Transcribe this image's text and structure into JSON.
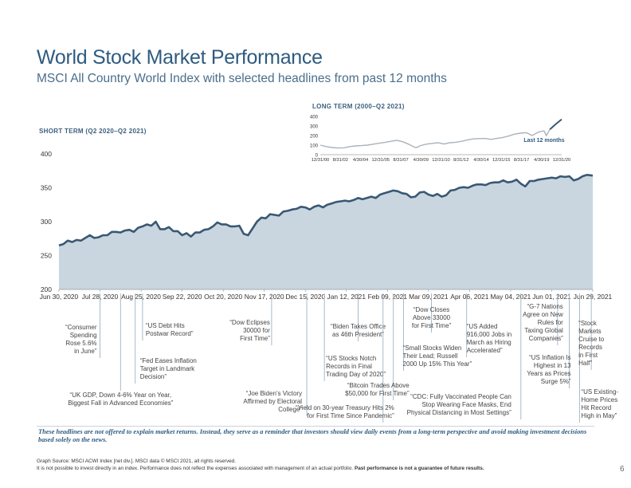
{
  "title": "World Stock Market Performance",
  "subtitle": "MSCI All Country World Index with selected headlines from past 12 months",
  "short_term_label": "SHORT TERM (Q2 2020–Q2 2021)",
  "long_term_label": "LONG TERM (2000–Q2 2021)",
  "long_term_note": "Last 12\nmonths",
  "disclaimer": "These headlines are not offered to explain market returns. Instead, they serve as a reminder that investors should view daily events from a long-term perspective and avoid making investment decisions based solely on the news.",
  "source_line1": "Graph Source: MSCI ACWI Index [net div.]. MSCI data © MSCI 2021, all rights reserved.",
  "source_line2a": "It is not possible to invest directly in an index. Performance does not reflect the expenses associated with management of an actual portfolio. ",
  "source_line2b": "Past performance is not a guarantee of future results.",
  "page_number": "6",
  "colors": {
    "line": "#3a5874",
    "fill": "#c9d6e0",
    "accent": "#2e5b80",
    "annotation_line": "#9fb3c4"
  },
  "chart_data": [
    {
      "type": "area",
      "name": "short_term",
      "title": "SHORT TERM (Q2 2020–Q2 2021)",
      "ylim": [
        200,
        400
      ],
      "yticks": [
        200,
        250,
        300,
        350,
        400
      ],
      "xlim": [
        0,
        364
      ],
      "x_ticks": [
        {
          "x": 0,
          "label": "Jun 30, 2020"
        },
        {
          "x": 28,
          "label": "Jul 28, 2020"
        },
        {
          "x": 56,
          "label": "Aug 25, 2020"
        },
        {
          "x": 84,
          "label": "Sep 22, 2020"
        },
        {
          "x": 112,
          "label": "Oct 20, 2020"
        },
        {
          "x": 140,
          "label": "Nov 17, 2020"
        },
        {
          "x": 168,
          "label": "Dec 15, 2020"
        },
        {
          "x": 196,
          "label": "Jan 12, 2021"
        },
        {
          "x": 224,
          "label": "Feb 09, 2021"
        },
        {
          "x": 252,
          "label": "Mar 09, 2021"
        },
        {
          "x": 280,
          "label": "Apr 06, 2021"
        },
        {
          "x": 308,
          "label": "May 04, 2021"
        },
        {
          "x": 336,
          "label": "Jun 01, 2021"
        },
        {
          "x": 364,
          "label": "Jun 29, 2021"
        }
      ],
      "x": [
        0,
        3,
        6,
        9,
        12,
        15,
        18,
        21,
        24,
        27,
        30,
        33,
        36,
        39,
        42,
        45,
        48,
        51,
        54,
        57,
        60,
        63,
        66,
        69,
        72,
        75,
        78,
        81,
        84,
        87,
        90,
        93,
        96,
        99,
        102,
        105,
        108,
        111,
        114,
        117,
        120,
        123,
        126,
        129,
        132,
        135,
        138,
        141,
        144,
        147,
        150,
        153,
        156,
        159,
        162,
        165,
        168,
        171,
        174,
        177,
        180,
        183,
        186,
        189,
        192,
        195,
        198,
        201,
        204,
        207,
        210,
        213,
        216,
        219,
        222,
        225,
        228,
        231,
        234,
        237,
        240,
        243,
        246,
        249,
        252,
        255,
        258,
        261,
        264,
        267,
        270,
        273,
        276,
        279,
        282,
        285,
        288,
        291,
        294,
        297,
        300,
        303,
        306,
        309,
        312,
        315,
        318,
        321,
        324,
        327,
        330,
        333,
        336,
        339,
        342,
        345,
        348,
        351,
        354,
        357,
        360,
        364
      ],
      "values": [
        265,
        267,
        272,
        270,
        273,
        272,
        276,
        280,
        276,
        277,
        280,
        280,
        285,
        285,
        284,
        287,
        288,
        285,
        291,
        293,
        296,
        294,
        300,
        289,
        289,
        292,
        286,
        286,
        280,
        283,
        278,
        284,
        284,
        288,
        289,
        293,
        299,
        296,
        296,
        293,
        293,
        294,
        282,
        280,
        290,
        300,
        306,
        305,
        311,
        310,
        309,
        315,
        316,
        318,
        319,
        322,
        321,
        318,
        322,
        324,
        321,
        325,
        327,
        329,
        330,
        331,
        330,
        332,
        335,
        333,
        335,
        337,
        335,
        340,
        342,
        344,
        346,
        345,
        342,
        341,
        336,
        337,
        343,
        344,
        340,
        338,
        341,
        337,
        339,
        346,
        347,
        350,
        351,
        350,
        353,
        355,
        355,
        354,
        357,
        358,
        358,
        361,
        358,
        359,
        362,
        356,
        352,
        360,
        360,
        362,
        363,
        364,
        365,
        364,
        367,
        366,
        367,
        361,
        363,
        367,
        369,
        368
      ]
    },
    {
      "type": "area",
      "name": "long_term",
      "title": "LONG TERM (2000–Q2 2021)",
      "ylim": [
        0,
        400
      ],
      "yticks": [
        0,
        100,
        200,
        300,
        400
      ],
      "xlim": [
        2001.0,
        2021.5
      ],
      "x_tick_labels": [
        "12/31/00",
        "8/31/02",
        "4/30/04",
        "12/31/05",
        "8/31/07",
        "4/30/09",
        "12/31/10",
        "8/31/12",
        "4/30/14",
        "12/31/15",
        "8/31/17",
        "4/30/19",
        "12/31/20"
      ],
      "x": [
        2001.0,
        2001.5,
        2002.0,
        2002.5,
        2003.0,
        2003.5,
        2004.0,
        2004.5,
        2005.0,
        2005.5,
        2006.0,
        2006.5,
        2007.0,
        2007.5,
        2008.0,
        2008.5,
        2009.0,
        2009.2,
        2009.5,
        2010.0,
        2010.5,
        2011.0,
        2011.5,
        2012.0,
        2012.5,
        2013.0,
        2013.5,
        2014.0,
        2014.5,
        2015.0,
        2015.5,
        2016.0,
        2016.5,
        2017.0,
        2017.5,
        2018.0,
        2018.5,
        2019.0,
        2019.5,
        2020.0,
        2020.2,
        2020.5,
        2021.0,
        2021.5
      ],
      "values": [
        100,
        85,
        75,
        70,
        72,
        85,
        92,
        95,
        100,
        110,
        120,
        128,
        140,
        150,
        135,
        110,
        78,
        75,
        95,
        110,
        118,
        125,
        112,
        125,
        130,
        140,
        155,
        165,
        168,
        170,
        160,
        170,
        180,
        195,
        215,
        225,
        230,
        200,
        235,
        250,
        200,
        265,
        320,
        370
      ],
      "note": "Last 12 months"
    }
  ],
  "headlines": [
    {
      "id": "consumer-spending",
      "text": "“Consumer\nSpending\nRose 5.6%\nin June”",
      "x": 28
    },
    {
      "id": "uk-gdp",
      "text": "“UK GDP, Down 4-6% Year on Year,\nBiggest Fall in Advanced Economies”",
      "x": 42
    },
    {
      "id": "us-debt",
      "text": "“US Debt Hits\nPostwar Record”",
      "x": 57
    },
    {
      "id": "fed-inflation",
      "text": "“Fed Eases Inflation\nTarget in Landmark\nDecision”",
      "x": 52
    },
    {
      "id": "dow-30000",
      "text": "“Dow Eclipses\n30000 for\nFirst Time”",
      "x": 145
    },
    {
      "id": "biden-victory",
      "text": "“Joe Biden’s Victory\nAffirmed by Electoral\nCollege”",
      "x": 169
    },
    {
      "id": "us-stocks-notch",
      "text": "“US Stocks Notch\nRecords in Final\nTrading Day of 2020”",
      "x": 181
    },
    {
      "id": "biden-office",
      "text": "“Biden Takes Office\nas 46th President”",
      "x": 204
    },
    {
      "id": "yield-2",
      "text": "“Yield on 30-year Treasury Hits 2%\nfor First Time Since Pandemic”",
      "x": 221
    },
    {
      "id": "bitcoin",
      "text": "“Bitcoin Trades Above\n$50,000 for First Time”",
      "x": 228
    },
    {
      "id": "small-stocks",
      "text": "“Small Stocks Widen\nTheir Lead; Russell\n2000 Up 15% This Year”",
      "x": 235
    },
    {
      "id": "dow-33000",
      "text": "“Dow Closes\nAbove 33000\nfor First Time”",
      "x": 254
    },
    {
      "id": "us-jobs",
      "text": "“US Added\n916,000 Jobs in\nMarch as Hiring\nAccelerated”",
      "x": 278
    },
    {
      "id": "cdc-masks",
      "text": "“CDC: Fully Vaccinated People Can\nStop Wearing Face Masks, End\nPhysical Distancing in Most Settings”",
      "x": 315
    },
    {
      "id": "g7-tax",
      "text": "“G-7 Nations\nAgree on New\nRules for\nTaxing Global\nCompanies”",
      "x": 340
    },
    {
      "id": "us-inflation",
      "text": "“US Inflation Is\nHighest in 13\nYears as Prices\nSurge 5%”",
      "x": 348
    },
    {
      "id": "home-prices",
      "text": "“US Existing-\nHome Prices\nHit Record\nHigh in May”",
      "x": 355
    },
    {
      "id": "stock-markets-records",
      "text": "“Stock\nMarkets\nCruise to\nRecords\nin First\nHalf”",
      "x": 363
    }
  ]
}
